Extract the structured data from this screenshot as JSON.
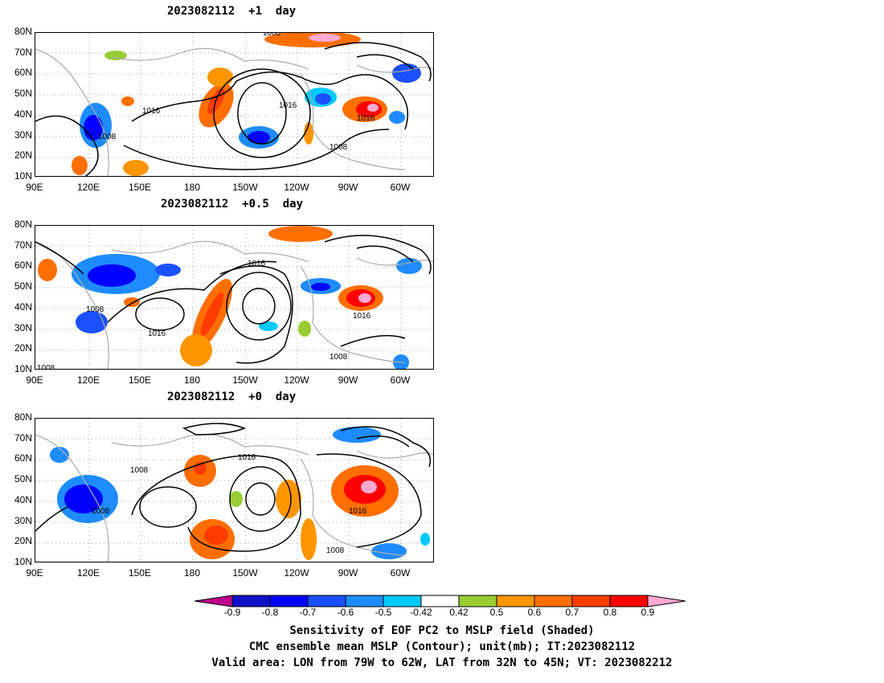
{
  "panels": [
    {
      "title": "2023082112  +1  day",
      "contour_labels": [
        "1008",
        "1016",
        "1016",
        "1008",
        "1016",
        "1008"
      ]
    },
    {
      "title": "2023082112  +0.5  day",
      "contour_labels": [
        "1016",
        "1008",
        "1016",
        "1016",
        "1008",
        "1008"
      ]
    },
    {
      "title": "2023082112  +0  day",
      "contour_labels": [
        "1008",
        "1016",
        "1008",
        "1016",
        "1008"
      ]
    }
  ],
  "axes": {
    "lat_ticks": [
      "80N",
      "70N",
      "60N",
      "50N",
      "40N",
      "30N",
      "20N",
      "10N"
    ],
    "lon_ticks": [
      "90E",
      "120E",
      "150E",
      "180",
      "150W",
      "120W",
      "90W",
      "60W"
    ]
  },
  "colorbar": {
    "ticks": [
      "-0.9",
      "-0.8",
      "-0.7",
      "-0.6",
      "-0.5",
      "-0.42",
      "0.42",
      "0.5",
      "0.6",
      "0.7",
      "0.8",
      "0.9"
    ],
    "colors": [
      "#c0008c",
      "#1010c8",
      "#0000ff",
      "#1a50ff",
      "#1e8cff",
      "#00c8ff",
      "#ffffff",
      "#98cc32",
      "#ff9600",
      "#ff6e00",
      "#ff3c00",
      "#ff0000",
      "#ffaad2"
    ]
  },
  "caption": [
    "Sensitivity of EOF PC2 to MSLP field (Shaded)",
    "CMC ensemble mean MSLP (Contour); unit(mb); IT:2023082112",
    "Valid area: LON from 79W to 62W, LAT from 32N to 45N; VT: 2023082212"
  ]
}
